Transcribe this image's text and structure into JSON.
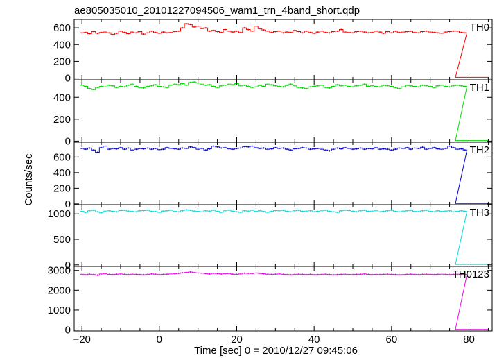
{
  "chart_data": {
    "type": "line",
    "title": "ae805035010_20101227094506_wam1_trn_4band_short.qdp",
    "xlabel": "Time [sec] 0 = 2010/12/27 09:45:06",
    "ylabel": "Counts/sec",
    "xlim": [
      -22,
      86
    ],
    "x_ticks": [
      -20,
      0,
      20,
      40,
      60,
      80
    ],
    "x_tick_labels": [
      "−20",
      "0",
      "20",
      "40",
      "60",
      "80"
    ],
    "grid": false,
    "bin_width_sec": 1,
    "x_start": -20,
    "x_end": 85,
    "step_drop_time": 76.5,
    "panels": [
      {
        "label": "TH0",
        "color": "#ff0000",
        "ylim": [
          -20,
          700
        ],
        "y_ticks": [
          0,
          200,
          400,
          600
        ],
        "y_tick_labels": [
          "0",
          "200",
          "400",
          "600"
        ],
        "series_before": [
          540,
          545,
          530,
          555,
          535,
          545,
          550,
          540,
          520,
          535,
          560,
          545,
          530,
          550,
          540,
          555,
          525,
          540,
          560,
          545,
          535,
          550,
          540,
          545,
          555,
          560,
          600,
          650,
          640,
          610,
          620,
          590,
          600,
          560,
          570,
          555,
          545,
          580,
          560,
          550,
          560,
          545,
          600,
          580,
          560,
          620,
          590,
          575,
          560,
          545,
          555,
          560,
          540,
          550,
          545,
          570,
          555,
          540,
          560,
          545,
          535,
          550,
          560,
          545,
          540,
          555,
          560,
          580,
          550,
          545,
          540,
          555,
          560,
          550,
          540,
          545,
          560,
          550,
          535,
          555,
          540,
          560,
          545,
          550,
          555,
          560,
          545,
          540,
          555,
          560,
          550,
          545,
          540,
          535,
          550,
          555,
          560,
          560,
          545,
          540
        ],
        "value_after": 10
      },
      {
        "label": "TH1",
        "color": "#00dd00",
        "ylim": [
          -10,
          560
        ],
        "y_ticks": [
          0,
          200,
          400
        ],
        "y_tick_labels": [
          "0",
          "200",
          "400"
        ],
        "series_before": [
          510,
          500,
          480,
          470,
          490,
          500,
          495,
          510,
          505,
          490,
          500,
          495,
          510,
          520,
          500,
          490,
          485,
          500,
          505,
          515,
          500,
          495,
          490,
          510,
          520,
          515,
          525,
          510,
          535,
          540,
          530,
          520,
          510,
          515,
          500,
          490,
          505,
          510,
          520,
          515,
          525,
          505,
          510,
          500,
          490,
          495,
          510,
          500,
          520,
          515,
          505,
          500,
          495,
          510,
          520,
          505,
          490,
          485,
          480,
          495,
          500,
          505,
          510,
          490,
          485,
          500,
          515,
          505,
          510,
          500,
          495,
          505,
          510,
          520,
          500,
          505,
          500,
          495,
          510,
          505,
          500,
          490,
          480,
          495,
          510,
          505,
          500,
          495,
          510,
          505,
          500,
          490,
          505,
          510,
          500,
          495,
          505,
          510,
          505,
          500
        ],
        "value_after": 5
      },
      {
        "label": "TH2",
        "color": "#0000cc",
        "ylim": [
          -10,
          790
        ],
        "y_ticks": [
          0,
          200,
          400,
          600
        ],
        "y_tick_labels": [
          "0",
          "200",
          "400",
          "600"
        ],
        "series_before": [
          710,
          700,
          715,
          690,
          660,
          720,
          740,
          700,
          710,
          705,
          720,
          700,
          715,
          690,
          700,
          710,
          705,
          715,
          700,
          710,
          695,
          700,
          720,
          710,
          705,
          700,
          715,
          710,
          730,
          720,
          700,
          710,
          690,
          705,
          740,
          730,
          715,
          720,
          705,
          700,
          710,
          715,
          735,
          730,
          740,
          720,
          710,
          715,
          700,
          705,
          720,
          710,
          715,
          700,
          690,
          705,
          710,
          720,
          715,
          700,
          705,
          710,
          700,
          690,
          680,
          700,
          715,
          705,
          720,
          710,
          700,
          705,
          715,
          700,
          710,
          705,
          720,
          700,
          705,
          700,
          690,
          700,
          715,
          710,
          720,
          700,
          715,
          710,
          725,
          700,
          710,
          720,
          705,
          700,
          710,
          740,
          720,
          700,
          705,
          690
        ],
        "value_after": 5
      },
      {
        "label": "TH3",
        "color": "#00dddd",
        "ylim": [
          -30,
          1180
        ],
        "y_ticks": [
          0,
          500,
          1000
        ],
        "y_tick_labels": [
          "0",
          "500",
          "1000"
        ],
        "series_before": [
          1050,
          1030,
          1060,
          1070,
          1040,
          1020,
          1055,
          1060,
          1050,
          1040,
          1065,
          1070,
          1055,
          1050,
          1040,
          1060,
          1065,
          1070,
          1050,
          1045,
          1030,
          1055,
          1060,
          1070,
          1050,
          1040,
          1060,
          1080,
          1070,
          1055,
          1050,
          1040,
          1060,
          1055,
          1070,
          1050,
          1030,
          1060,
          1070,
          1050,
          1040,
          1030,
          1060,
          1055,
          1070,
          1050,
          1060,
          1045,
          1030,
          1050,
          1065,
          1060,
          1070,
          1050,
          1040,
          1060,
          1070,
          1050,
          1055,
          1060,
          1040,
          1050,
          1060,
          1070,
          1050,
          1040,
          1030,
          1060,
          1070,
          1065,
          1050,
          1040,
          1060,
          1070,
          1050,
          1055,
          1060,
          1040,
          1050,
          1060,
          1070,
          1050,
          1040,
          1055,
          1060,
          1070,
          1050,
          1045,
          1060,
          1070,
          1050,
          1040,
          1060,
          1050,
          1055,
          1060,
          1040,
          1050,
          1060,
          1050
        ],
        "value_after": 10
      },
      {
        "label": "TH0123",
        "color": "#ee00ee",
        "ylim": [
          -50,
          3200
        ],
        "y_ticks": [
          0,
          1000,
          2000,
          3000
        ],
        "y_tick_labels": [
          "0",
          "1000",
          "2000",
          "3000"
        ],
        "series_before": [
          2800,
          2780,
          2810,
          2790,
          2760,
          2820,
          2830,
          2800,
          2790,
          2810,
          2820,
          2800,
          2790,
          2810,
          2800,
          2790,
          2780,
          2800,
          2820,
          2810,
          2790,
          2800,
          2810,
          2820,
          2830,
          2850,
          2880,
          2900,
          2920,
          2890,
          2870,
          2860,
          2840,
          2820,
          2850,
          2840,
          2820,
          2830,
          2840,
          2810,
          2800,
          2820,
          2860,
          2850,
          2840,
          2870,
          2850,
          2830,
          2810,
          2800,
          2810,
          2820,
          2800,
          2790,
          2780,
          2800,
          2810,
          2800,
          2790,
          2800,
          2780,
          2790,
          2800,
          2810,
          2790,
          2780,
          2790,
          2800,
          2810,
          2800,
          2790,
          2800,
          2810,
          2820,
          2800,
          2790,
          2800,
          2790,
          2800,
          2810,
          2800,
          2790,
          2780,
          2790,
          2800,
          2810,
          2800,
          2790,
          2800,
          2810,
          2800,
          2790,
          2800,
          2810,
          2800,
          2790,
          2800,
          2810,
          2790,
          2800
        ],
        "value_after": 30
      }
    ]
  }
}
